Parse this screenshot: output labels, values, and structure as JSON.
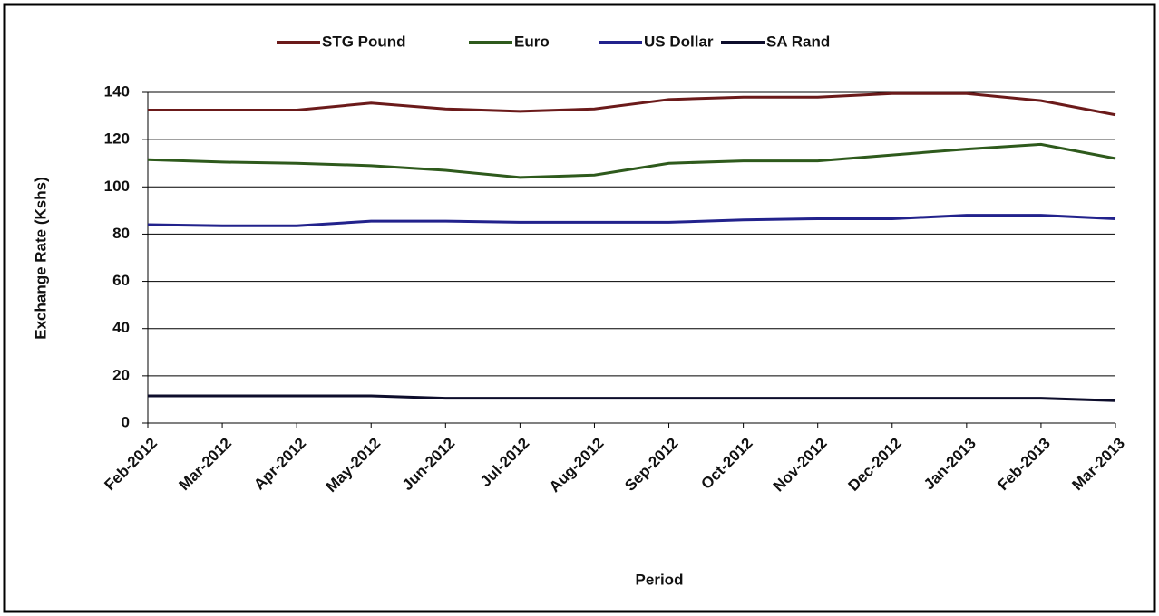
{
  "chart_data": {
    "type": "line",
    "x_label": "Period",
    "y_label": "Exchange Rate (Kshs)",
    "categories": [
      "Feb-2012",
      "Mar-2012",
      "Apr-2012",
      "May-2012",
      "Jun-2012",
      "Jul-2012",
      "Aug-2012",
      "Sep-2012",
      "Oct-2012",
      "Nov-2012",
      "Dec-2012",
      "Jan-2013",
      "Feb-2013",
      "Mar-2013"
    ],
    "series": [
      {
        "name": "STG Pound",
        "color": "#6b1a1a",
        "values": [
          132.5,
          132.5,
          132.5,
          135.5,
          133,
          132,
          133,
          137,
          138,
          138,
          139.5,
          139.5,
          136.5,
          130.5
        ]
      },
      {
        "name": "Euro",
        "color": "#2e5a1c",
        "values": [
          111.5,
          110.5,
          110,
          109,
          107,
          104,
          105,
          110,
          111,
          111,
          113.5,
          116,
          118,
          112
        ]
      },
      {
        "name": "US Dollar",
        "color": "#22228c",
        "values": [
          84,
          83.5,
          83.5,
          85.5,
          85.5,
          85,
          85,
          85,
          86,
          86.5,
          86.5,
          88,
          88,
          86.5
        ]
      },
      {
        "name": "SA Rand",
        "color": "#0d0d2b",
        "values": [
          11.5,
          11.5,
          11.5,
          11.5,
          10.5,
          10.5,
          10.5,
          10.5,
          10.5,
          10.5,
          10.5,
          10.5,
          10.5,
          9.5
        ]
      }
    ],
    "ylim": [
      0,
      140
    ],
    "yticks": [
      0,
      20,
      40,
      60,
      80,
      100,
      120,
      140
    ],
    "grid": true,
    "legend": "top"
  }
}
